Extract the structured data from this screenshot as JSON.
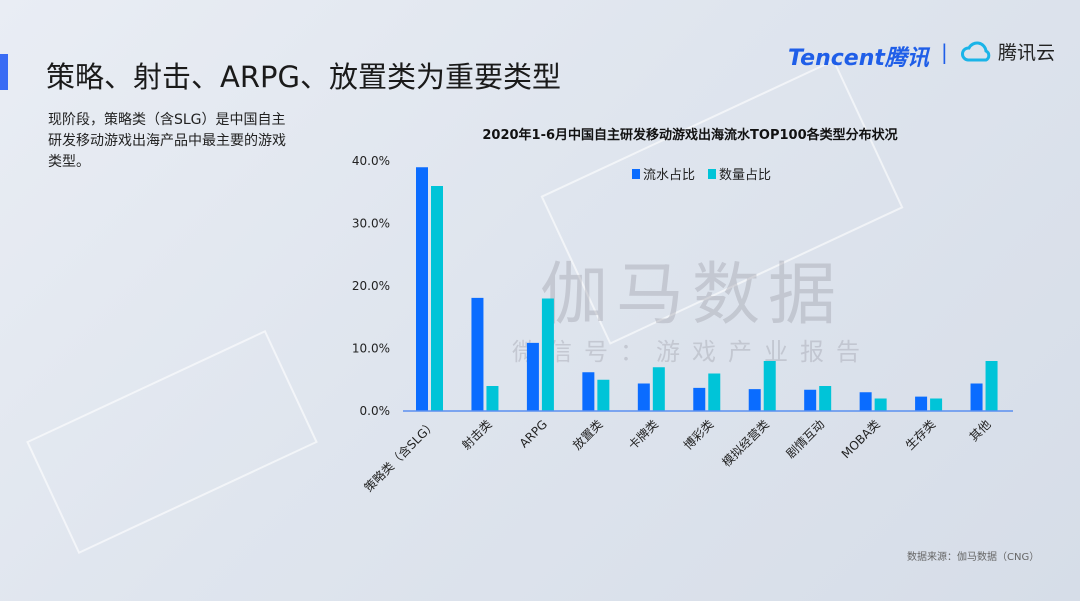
{
  "header": {
    "title": "策略、射击、ARPG、放置类为重要类型",
    "logo_tencent": "Tencent腾讯",
    "logo_separator": "|",
    "logo_cloud": "腾讯云"
  },
  "description": "现阶段，策略类（含SLG）是中国自主研发移动游戏出海产品中最主要的游戏类型。",
  "watermark": {
    "main": "伽马数据",
    "sub": "微信号：游戏产业报告"
  },
  "source": "数据来源：伽马数据（CNG）",
  "colors": {
    "revenue": "#0a6cff",
    "count": "#00c4d8"
  },
  "chart_data": {
    "type": "bar",
    "title": "2020年1-6月中国自主研发移动游戏出海流水TOP100各类型分布状况",
    "categories": [
      "策略类（含SLG）",
      "射击类",
      "ARPG",
      "放置类",
      "卡牌类",
      "博彩类",
      "模拟经营类",
      "剧情互动",
      "MOBA类",
      "生存类",
      "其他"
    ],
    "series": [
      {
        "name": "流水占比",
        "values": [
          39.0,
          18.1,
          10.9,
          6.2,
          4.4,
          3.7,
          3.5,
          3.4,
          3.0,
          2.3,
          4.4
        ]
      },
      {
        "name": "数量占比",
        "values": [
          36.0,
          4.0,
          18.0,
          5.0,
          7.0,
          6.0,
          8.0,
          4.0,
          2.0,
          2.0,
          8.0
        ]
      }
    ],
    "ylim": [
      0,
      40
    ],
    "yticks": [
      "0.0%",
      "10.0%",
      "20.0%",
      "30.0%",
      "40.0%"
    ],
    "legend": "top-center",
    "grid": false
  }
}
